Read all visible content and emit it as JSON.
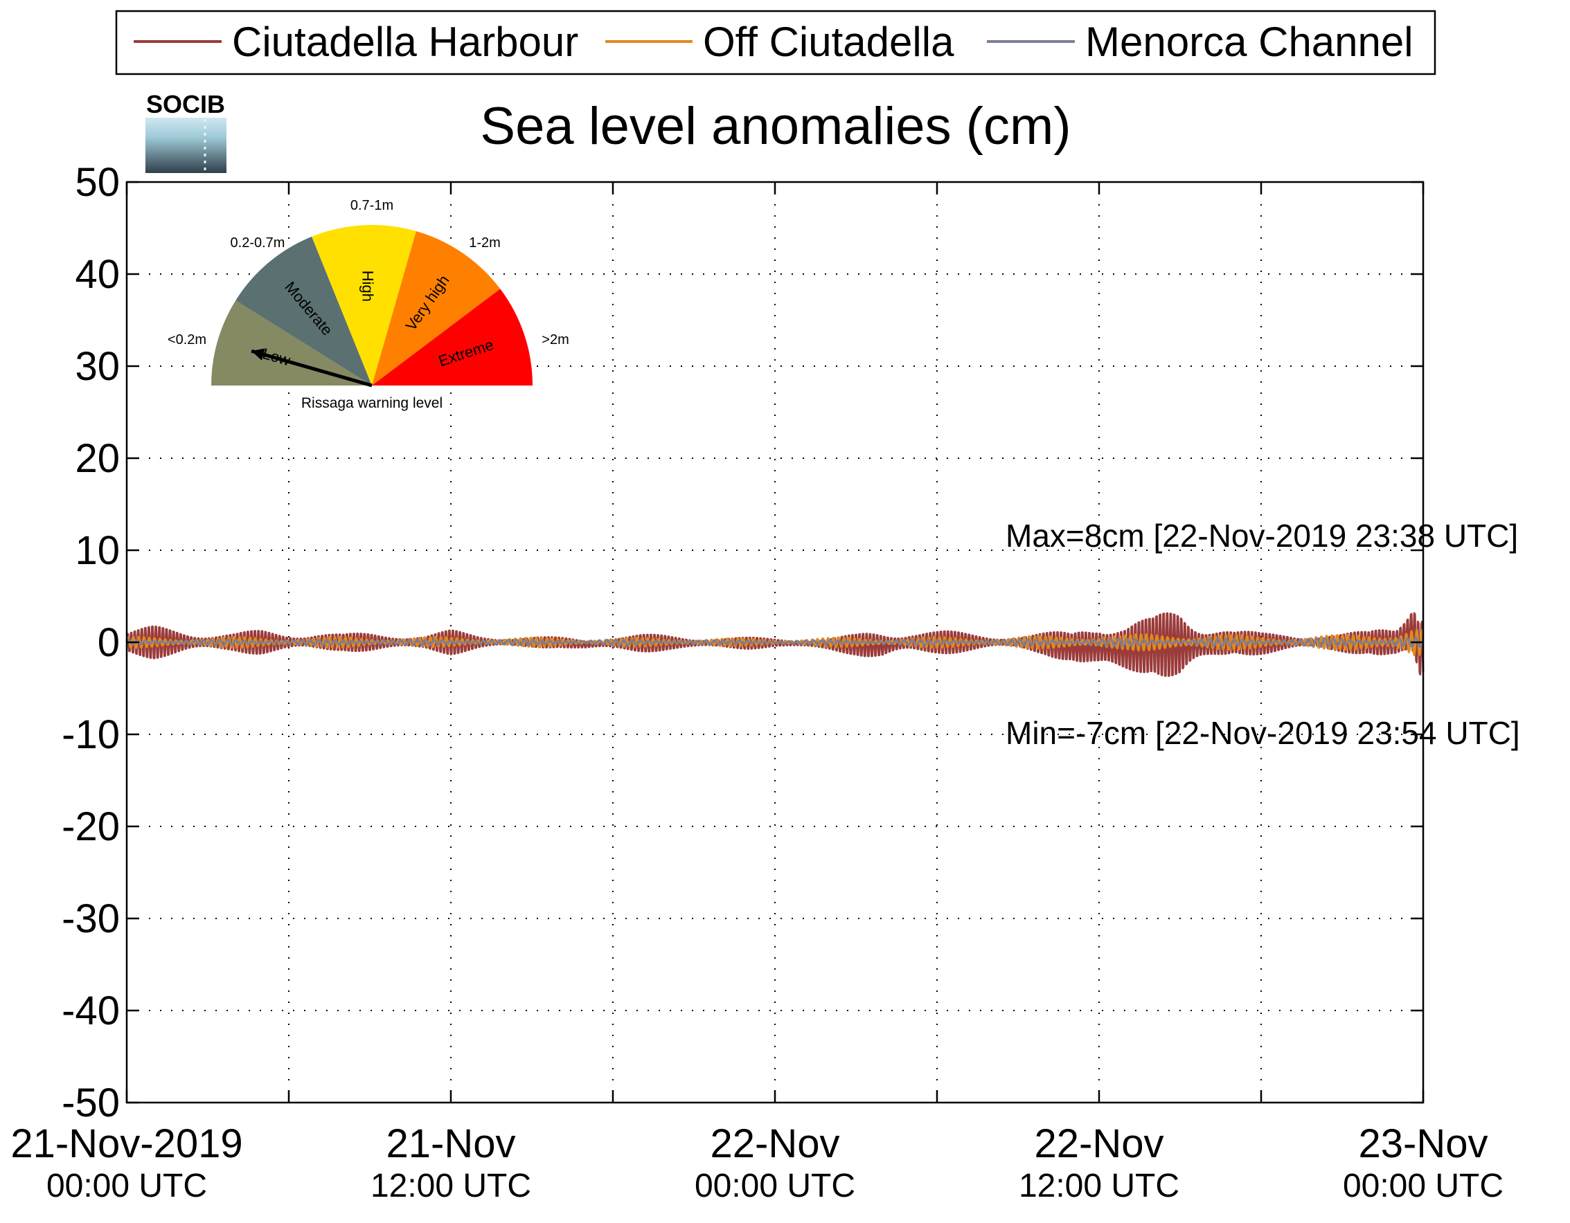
{
  "chart_data": {
    "type": "line",
    "title": "Sea level anomalies (cm)",
    "ylim": [
      -50,
      50
    ],
    "yticks": [
      50,
      40,
      30,
      20,
      10,
      0,
      -10,
      -20,
      -30,
      -40,
      -50
    ],
    "xlim": [
      "2019-11-21T00:00",
      "2019-11-23T00:00"
    ],
    "grid": true,
    "legend_position": "top",
    "xtick_labels": [
      {
        "x": "2019-11-21T00:00",
        "line1": "21-Nov-2019",
        "line2": "00:00 UTC"
      },
      {
        "x": "2019-11-21T12:00",
        "line1": "21-Nov",
        "line2": "12:00 UTC"
      },
      {
        "x": "2019-11-22T00:00",
        "line1": "22-Nov",
        "line2": "00:00 UTC"
      },
      {
        "x": "2019-11-22T12:00",
        "line1": "22-Nov",
        "line2": "12:00 UTC"
      },
      {
        "x": "2019-11-23T00:00",
        "line1": "23-Nov",
        "line2": "00:00 UTC"
      }
    ],
    "series": [
      {
        "name": "Ciutadella Harbour",
        "color": "#9b3b3b",
        "x": [
          "2019-11-21T00:00",
          "2019-11-21T01:00",
          "2019-11-21T02:00",
          "2019-11-21T03:00",
          "2019-11-21T04:00",
          "2019-11-21T05:00",
          "2019-11-21T06:00",
          "2019-11-21T07:00",
          "2019-11-21T08:00",
          "2019-11-21T09:00",
          "2019-11-21T10:00",
          "2019-11-21T11:00",
          "2019-11-21T12:00",
          "2019-11-21T13:00",
          "2019-11-21T14:00",
          "2019-11-21T15:00",
          "2019-11-21T16:00",
          "2019-11-21T17:00",
          "2019-11-21T18:00",
          "2019-11-21T19:00",
          "2019-11-21T20:00",
          "2019-11-21T21:00",
          "2019-11-21T22:00",
          "2019-11-21T23:00",
          "2019-11-22T00:00",
          "2019-11-22T01:00",
          "2019-11-22T02:00",
          "2019-11-22T03:00",
          "2019-11-22T04:00",
          "2019-11-22T05:00",
          "2019-11-22T06:00",
          "2019-11-22T07:00",
          "2019-11-22T08:00",
          "2019-11-22T09:00",
          "2019-11-22T10:00",
          "2019-11-22T11:00",
          "2019-11-22T12:00",
          "2019-11-22T13:00",
          "2019-11-22T14:00",
          "2019-11-22T15:00",
          "2019-11-22T16:00",
          "2019-11-22T17:00",
          "2019-11-22T18:00",
          "2019-11-22T19:00",
          "2019-11-22T20:00",
          "2019-11-22T21:00",
          "2019-11-22T22:00",
          "2019-11-22T23:00",
          "2019-11-22T23:38",
          "2019-11-22T23:54",
          "2019-11-23T00:00"
        ],
        "upper": [
          1.5,
          2.0,
          1.8,
          1.5,
          1.2,
          1.5,
          1.3,
          1.6,
          1.0,
          1.2,
          1.3,
          1.0,
          1.5,
          1.0,
          0.8,
          0.7,
          0.6,
          0.5,
          1.0,
          1.0,
          0.9,
          0.8,
          0.7,
          0.6,
          0.5,
          0.5,
          0.6,
          1.0,
          1.8,
          2.0,
          1.5,
          1.2,
          1.0,
          1.0,
          1.2,
          1.5,
          5.0,
          3.0,
          3.0,
          5.5,
          3.5,
          1.5,
          1.2,
          1.5,
          1.0,
          1.0,
          1.5,
          4.0,
          8.0,
          5.0,
          6.0
        ],
        "lower": [
          -1.5,
          -2.0,
          -1.8,
          -1.5,
          -1.2,
          -1.5,
          -1.3,
          -1.5,
          -1.0,
          -1.2,
          -1.3,
          -1.0,
          -1.5,
          -1.0,
          -0.8,
          -0.7,
          -0.6,
          -1.0,
          -1.2,
          -1.2,
          -1.0,
          -1.0,
          -0.8,
          -0.8,
          -0.6,
          -0.8,
          -1.0,
          -1.5,
          -2.5,
          -2.0,
          -1.5,
          -1.2,
          -1.0,
          -1.0,
          -1.5,
          -2.5,
          -6.0,
          -4.5,
          -3.5,
          -6.0,
          -4.0,
          -1.5,
          -1.5,
          -1.5,
          -1.0,
          -1.2,
          -1.5,
          -4.0,
          -5.5,
          -7.0,
          -6.5
        ]
      },
      {
        "name": "Off Ciutadella",
        "color": "#e08a1e",
        "x": [
          "2019-11-21T00:00",
          "2019-11-21T04:00",
          "2019-11-21T08:00",
          "2019-11-21T12:00",
          "2019-11-21T16:00",
          "2019-11-21T20:00",
          "2019-11-22T00:00",
          "2019-11-22T04:00",
          "2019-11-22T08:00",
          "2019-11-22T10:00",
          "2019-11-22T12:00",
          "2019-11-22T13:00",
          "2019-11-22T15:00",
          "2019-11-22T17:00",
          "2019-11-22T19:00",
          "2019-11-22T21:00",
          "2019-11-22T23:00",
          "2019-11-22T23:40",
          "2019-11-23T00:00"
        ],
        "upper": [
          0.6,
          0.6,
          0.6,
          0.6,
          0.5,
          0.5,
          0.4,
          0.6,
          0.6,
          0.7,
          1.0,
          0.8,
          1.2,
          0.8,
          0.7,
          0.8,
          1.5,
          2.0,
          1.5
        ],
        "lower": [
          -0.6,
          -0.6,
          -0.6,
          -0.5,
          -0.5,
          -0.5,
          -0.4,
          -0.6,
          -0.6,
          -0.7,
          -1.0,
          -0.8,
          -1.2,
          -0.8,
          -0.7,
          -0.8,
          -1.5,
          -2.0,
          -1.5
        ]
      },
      {
        "name": "Menorca Channel",
        "color": "#7a7f9a",
        "x": [
          "2019-11-21T00:00",
          "2019-11-21T06:00",
          "2019-11-21T12:00",
          "2019-11-21T18:00",
          "2019-11-22T00:00",
          "2019-11-22T06:00",
          "2019-11-22T12:00",
          "2019-11-22T18:00",
          "2019-11-23T00:00"
        ],
        "upper": [
          0.3,
          0.3,
          0.3,
          0.3,
          0.2,
          0.3,
          0.4,
          0.4,
          0.5
        ],
        "lower": [
          -0.3,
          -0.3,
          -0.3,
          -0.3,
          -0.2,
          -0.3,
          -0.4,
          -0.4,
          -0.5
        ]
      }
    ],
    "annotations": {
      "max_text": "Max=8cm [22-Nov-2019 23:38 UTC]",
      "min_text": "Min=-7cm [22-Nov-2019 23:54 UTC]",
      "color": "#9b3b3b"
    }
  },
  "logo": {
    "text": "SOCIB",
    "color": "#5ab8d3"
  },
  "gauge": {
    "caption": "Rissaga warning level",
    "sectors": [
      {
        "name": "Low",
        "range_label": "<0.2m",
        "color": "#868a63",
        "label_color": "#868a63"
      },
      {
        "name": "Moderate",
        "range_label": "0.2-0.7m",
        "color": "#5b7070",
        "label_color": "#5b7070"
      },
      {
        "name": "High",
        "range_label": "0.7-1m",
        "color": "#ffe000",
        "label_color": "#e8c800"
      },
      {
        "name": "Very high",
        "range_label": "1-2m",
        "color": "#ff8000",
        "label_color": "#ff8000"
      },
      {
        "name": "Extreme",
        "range_label": ">2m",
        "color": "#ff0000",
        "label_color": "#ff0000"
      }
    ],
    "current_level": "Low"
  }
}
